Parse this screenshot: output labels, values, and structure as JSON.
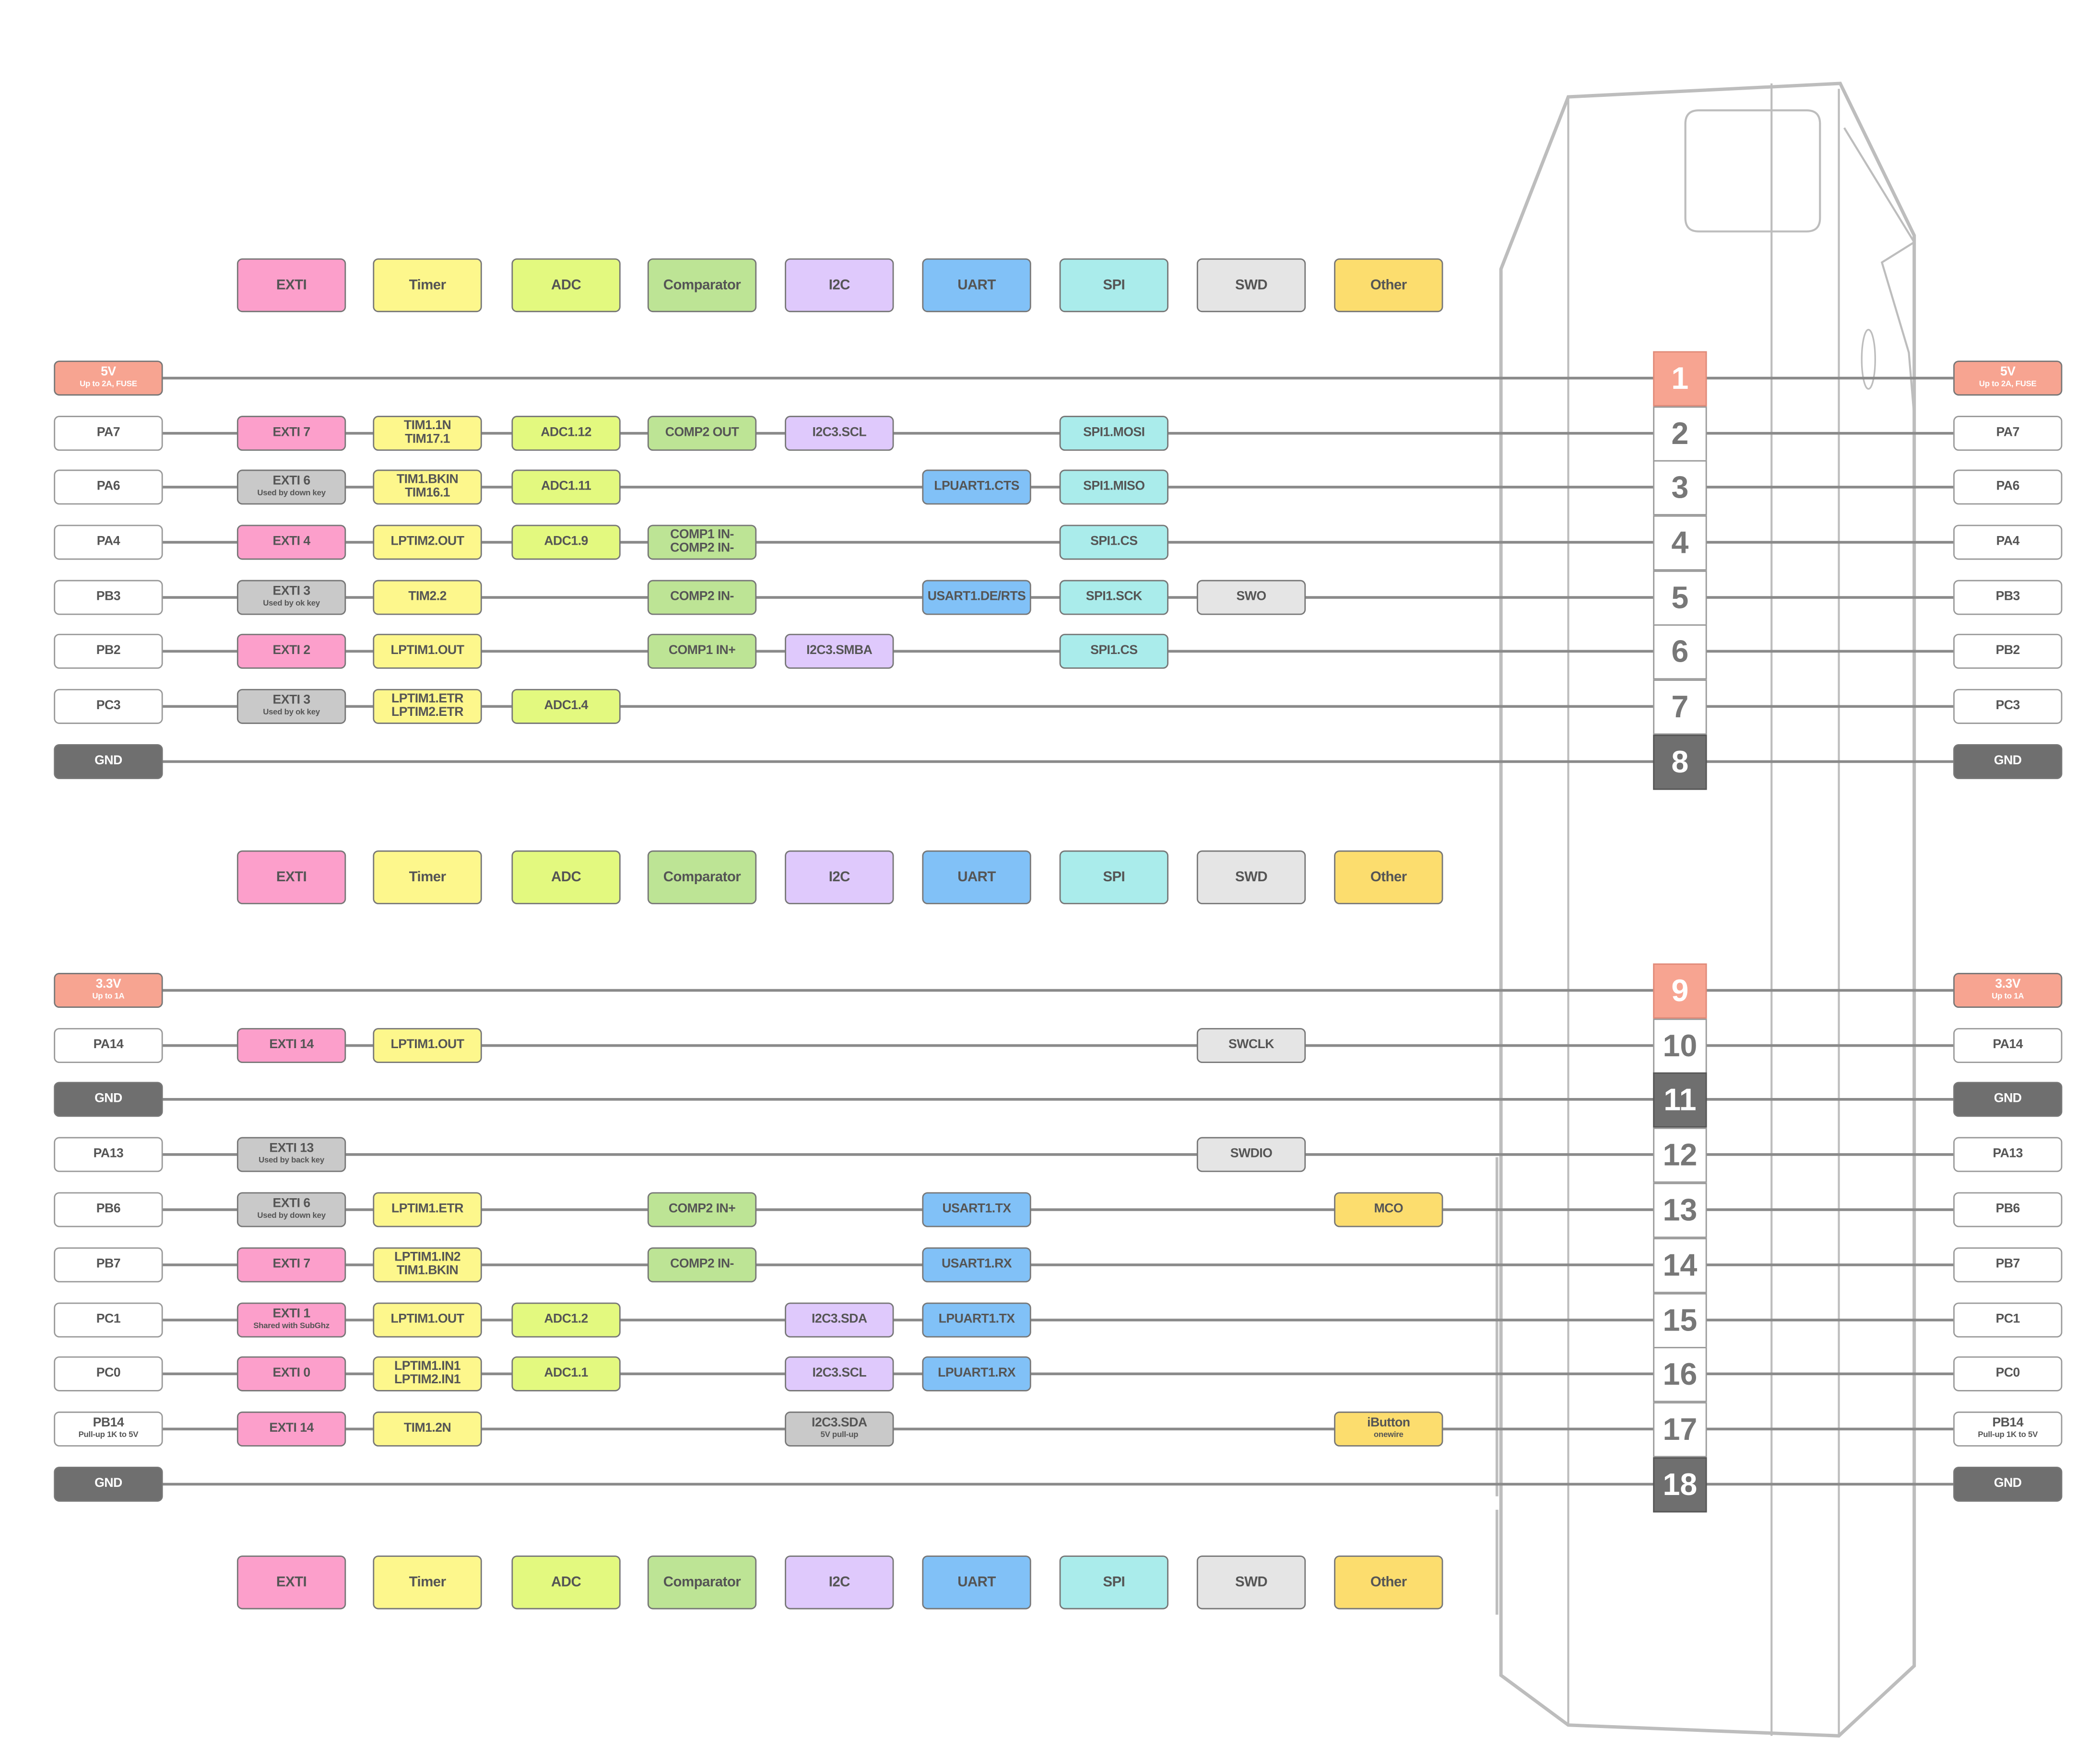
{
  "colors": {
    "exti": "#fc9fcb",
    "timer": "#fdf78c",
    "adc": "#e3f97f",
    "comparator": "#bde495",
    "i2c": "#dfc9fc",
    "uart": "#81c1f7",
    "spi": "#aaeceb",
    "swd": "#e5e5e5",
    "other": "#fcdd6e",
    "power": "#f7a491",
    "gnd": "#6f6f6f",
    "used": "#c9c9c9",
    "pin": "#ffffff"
  },
  "legend": [
    {
      "key": "exti",
      "label": "EXTI"
    },
    {
      "key": "timer",
      "label": "Timer"
    },
    {
      "key": "adc",
      "label": "ADC"
    },
    {
      "key": "comparator",
      "label": "Comparator"
    },
    {
      "key": "i2c",
      "label": "I2C"
    },
    {
      "key": "uart",
      "label": "UART"
    },
    {
      "key": "spi",
      "label": "SPI"
    },
    {
      "key": "swd",
      "label": "SWD"
    },
    {
      "key": "other",
      "label": "Other"
    }
  ],
  "pins": [
    {
      "num": "1",
      "label": "5V",
      "sub": "Up to 2A, FUSE",
      "type": "power",
      "cells": []
    },
    {
      "num": "2",
      "label": "PA7",
      "type": "pin",
      "cells": [
        {
          "col": "exti",
          "text": "EXTI 7"
        },
        {
          "col": "timer",
          "text": "TIM1.1N",
          "text2": "TIM17.1"
        },
        {
          "col": "adc",
          "text": "ADC1.12"
        },
        {
          "col": "comparator",
          "text": "COMP2 OUT"
        },
        {
          "col": "i2c",
          "text": "I2C3.SCL"
        },
        {
          "col": "spi",
          "text": "SPI1.MOSI"
        }
      ]
    },
    {
      "num": "3",
      "label": "PA6",
      "type": "pin",
      "cells": [
        {
          "col": "exti",
          "text": "EXTI 6",
          "sub": "Used by down key",
          "used": true
        },
        {
          "col": "timer",
          "text": "TIM1.BKIN",
          "text2": "TIM16.1"
        },
        {
          "col": "adc",
          "text": "ADC1.11"
        },
        {
          "col": "uart",
          "text": "LPUART1.CTS"
        },
        {
          "col": "spi",
          "text": "SPI1.MISO"
        }
      ]
    },
    {
      "num": "4",
      "label": "PA4",
      "type": "pin",
      "cells": [
        {
          "col": "exti",
          "text": "EXTI 4"
        },
        {
          "col": "timer",
          "text": "LPTIM2.OUT"
        },
        {
          "col": "adc",
          "text": "ADC1.9"
        },
        {
          "col": "comparator",
          "text": "COMP1 IN-",
          "text2": "COMP2 IN-"
        },
        {
          "col": "spi",
          "text": "SPI1.CS"
        }
      ]
    },
    {
      "num": "5",
      "label": "PB3",
      "type": "pin",
      "cells": [
        {
          "col": "exti",
          "text": "EXTI 3",
          "sub": "Used by ok key",
          "used": true
        },
        {
          "col": "timer",
          "text": "TIM2.2"
        },
        {
          "col": "comparator",
          "text": "COMP2 IN-"
        },
        {
          "col": "uart",
          "text": "USART1.DE/RTS"
        },
        {
          "col": "spi",
          "text": "SPI1.SCK"
        },
        {
          "col": "swd",
          "text": "SWO"
        }
      ]
    },
    {
      "num": "6",
      "label": "PB2",
      "type": "pin",
      "cells": [
        {
          "col": "exti",
          "text": "EXTI 2"
        },
        {
          "col": "timer",
          "text": "LPTIM1.OUT"
        },
        {
          "col": "comparator",
          "text": "COMP1 IN+"
        },
        {
          "col": "i2c",
          "text": "I2C3.SMBA"
        },
        {
          "col": "spi",
          "text": "SPI1.CS"
        }
      ]
    },
    {
      "num": "7",
      "label": "PC3",
      "type": "pin",
      "cells": [
        {
          "col": "exti",
          "text": "EXTI 3",
          "sub": "Used by ok key",
          "used": true
        },
        {
          "col": "timer",
          "text": "LPTIM1.ETR",
          "text2": "LPTIM2.ETR"
        },
        {
          "col": "adc",
          "text": "ADC1.4"
        }
      ]
    },
    {
      "num": "8",
      "label": "GND",
      "type": "gnd",
      "cells": []
    },
    {
      "num": "9",
      "label": "3.3V",
      "sub": "Up to 1A",
      "type": "power",
      "cells": []
    },
    {
      "num": "10",
      "label": "PA14",
      "type": "pin",
      "cells": [
        {
          "col": "exti",
          "text": "EXTI 14"
        },
        {
          "col": "timer",
          "text": "LPTIM1.OUT"
        },
        {
          "col": "swd",
          "text": "SWCLK"
        }
      ]
    },
    {
      "num": "11",
      "label": "GND",
      "type": "gnd",
      "cells": []
    },
    {
      "num": "12",
      "label": "PA13",
      "type": "pin",
      "cells": [
        {
          "col": "exti",
          "text": "EXTI 13",
          "sub": "Used by back key",
          "used": true
        },
        {
          "col": "swd",
          "text": "SWDIO"
        }
      ]
    },
    {
      "num": "13",
      "label": "PB6",
      "type": "pin",
      "cells": [
        {
          "col": "exti",
          "text": "EXTI 6",
          "sub": "Used by down key",
          "used": true
        },
        {
          "col": "timer",
          "text": "LPTIM1.ETR"
        },
        {
          "col": "comparator",
          "text": "COMP2 IN+"
        },
        {
          "col": "uart",
          "text": "USART1.TX"
        },
        {
          "col": "other",
          "text": "MCO"
        }
      ]
    },
    {
      "num": "14",
      "label": "PB7",
      "type": "pin",
      "cells": [
        {
          "col": "exti",
          "text": "EXTI 7"
        },
        {
          "col": "timer",
          "text": "LPTIM1.IN2",
          "text2": "TIM1.BKIN"
        },
        {
          "col": "comparator",
          "text": "COMP2 IN-"
        },
        {
          "col": "uart",
          "text": "USART1.RX"
        }
      ]
    },
    {
      "num": "15",
      "label": "PC1",
      "type": "pin",
      "cells": [
        {
          "col": "exti",
          "text": "EXTI 1",
          "sub": "Shared with SubGhz"
        },
        {
          "col": "timer",
          "text": "LPTIM1.OUT"
        },
        {
          "col": "adc",
          "text": "ADC1.2"
        },
        {
          "col": "i2c",
          "text": "I2C3.SDA"
        },
        {
          "col": "uart",
          "text": "LPUART1.TX"
        }
      ]
    },
    {
      "num": "16",
      "label": "PC0",
      "type": "pin",
      "cells": [
        {
          "col": "exti",
          "text": "EXTI 0"
        },
        {
          "col": "timer",
          "text": "LPTIM1.IN1",
          "text2": "LPTIM2.IN1"
        },
        {
          "col": "adc",
          "text": "ADC1.1"
        },
        {
          "col": "i2c",
          "text": "I2C3.SCL"
        },
        {
          "col": "uart",
          "text": "LPUART1.RX"
        }
      ]
    },
    {
      "num": "17",
      "label": "PB14",
      "sub": "Pull-up 1K to 5V",
      "type": "pin",
      "cells": [
        {
          "col": "exti",
          "text": "EXTI 14"
        },
        {
          "col": "timer",
          "text": "TIM1.2N"
        },
        {
          "col": "i2c",
          "text": "I2C3.SDA",
          "sub": "5V pull-up",
          "used": true
        },
        {
          "col": "other",
          "text": "iButton",
          "sub": "onewire"
        }
      ]
    },
    {
      "num": "18",
      "label": "GND",
      "type": "gnd",
      "cells": []
    }
  ]
}
